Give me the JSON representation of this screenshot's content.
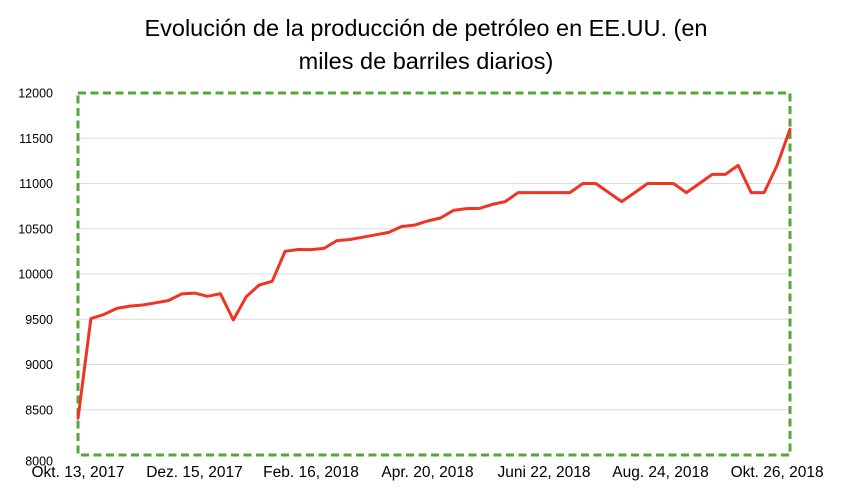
{
  "header": {
    "title_line1": "Evolución de la producción de petróleo en EE.UU. (en",
    "title_line2": "miles de barriles diarios)"
  },
  "chart_data": {
    "type": "line",
    "title": "Evolución de la producción de petróleo en EE.UU. (en miles de barriles diarios)",
    "series": [
      {
        "color": "#ee3524",
        "values": [
          8406,
          9507,
          9553,
          9620,
          9645,
          9658,
          9682,
          9707,
          9780,
          9789,
          9754,
          9782,
          9492,
          9750,
          9878,
          9919,
          10251,
          10271,
          10270,
          10283,
          10369,
          10381,
          10407,
          10433,
          10460,
          10525,
          10540,
          10586,
          10619,
          10703,
          10723,
          10725,
          10769,
          10800,
          10900,
          10900,
          10900,
          10900,
          10900,
          11000,
          11000,
          10900,
          10800,
          10900,
          11000,
          11000,
          11000,
          10900,
          11000,
          11100,
          11100,
          11200,
          10900,
          10900,
          11200,
          11600
        ]
      }
    ],
    "x_tick_labels": [
      "Okt. 13, 2017",
      "Dez. 15, 2017",
      "Feb. 16, 2018",
      "Apr. 20, 2018",
      "Juni 22, 2018",
      "Aug. 24, 2018",
      "Okt. 26, 2018"
    ],
    "x_tick_indices": [
      0,
      9,
      18,
      27,
      36,
      45,
      54
    ],
    "y_ticks": [
      8000,
      8500,
      9000,
      9500,
      10000,
      10500,
      11000,
      11500,
      12000
    ],
    "ylim": [
      8000,
      12000
    ],
    "grid": "horizontal-only",
    "legend": "none",
    "colors": {
      "line": "#ee3524",
      "plot_border": "#57a639",
      "gridline": "#dcdcdc",
      "text": "#000000",
      "background": "#ffffff"
    }
  }
}
